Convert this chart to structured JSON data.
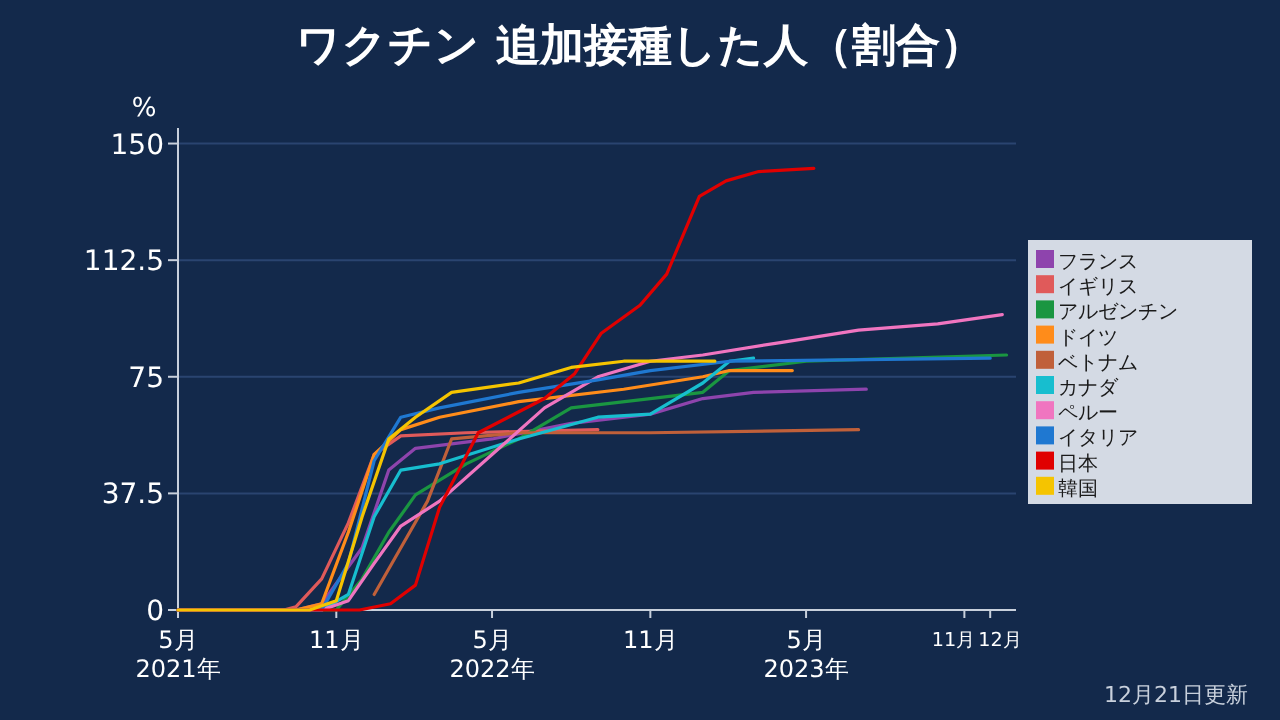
{
  "chart_data": {
    "type": "line",
    "title": "ワクチン 追加接種した人（割合）",
    "ylabel": "%",
    "annotations": [
      "12月21日更新"
    ],
    "xlim": [
      "2021-05-01",
      "2023-12-31"
    ],
    "ylim": [
      0,
      155
    ],
    "xticks": [
      {
        "value": "2021-05",
        "label": "5月\n2021年"
      },
      {
        "value": "2021-11",
        "label": "11月"
      },
      {
        "value": "2022-05",
        "label": "5月\n2022年"
      },
      {
        "value": "2022-11",
        "label": "11月"
      },
      {
        "value": "2023-05",
        "label": "5月\n2023年"
      },
      {
        "value": "2023-11",
        "label": "11月"
      },
      {
        "value": "2023-12",
        "label": "12月"
      }
    ],
    "yticks": [
      0,
      37.5,
      75,
      112.5,
      150
    ],
    "grid": "y",
    "legend": "right",
    "marker": "none",
    "line_style": "solid",
    "series": [
      {
        "name": "フランス",
        "color": "#8e44ad",
        "x": [
          "2021-05-01",
          "2021-09-15",
          "2021-10-15",
          "2021-12-01",
          "2022-01-01",
          "2022-02-01",
          "2022-05-01",
          "2022-08-01",
          "2022-11-01",
          "2023-01-01",
          "2023-03-01",
          "2023-07-10"
        ],
        "values": [
          0,
          0,
          2,
          20,
          45,
          52,
          55,
          60,
          63,
          68,
          70,
          71
        ]
      },
      {
        "name": "イギリス",
        "color": "#e05a5a",
        "x": [
          "2021-05-01",
          "2021-09-01",
          "2021-09-15",
          "2021-10-15",
          "2021-11-15",
          "2021-12-15",
          "2022-01-15",
          "2022-04-01",
          "2022-09-01"
        ],
        "values": [
          0,
          0,
          1,
          10,
          28,
          50,
          56,
          57,
          58
        ]
      },
      {
        "name": "アルゼンチン",
        "color": "#1a9641",
        "x": [
          "2021-05-01",
          "2021-11-01",
          "2021-12-01",
          "2022-01-01",
          "2022-02-01",
          "2022-04-01",
          "2022-06-01",
          "2022-08-01",
          "2022-11-01",
          "2023-01-01",
          "2023-02-01",
          "2023-05-01",
          "2023-12-20"
        ],
        "values": [
          0,
          0,
          10,
          25,
          37,
          47,
          55,
          65,
          68,
          70,
          77,
          80,
          82
        ]
      },
      {
        "name": "ドイツ",
        "color": "#ff8c1a",
        "x": [
          "2021-05-01",
          "2021-09-15",
          "2021-10-15",
          "2021-11-15",
          "2021-12-15",
          "2022-01-15",
          "2022-03-01",
          "2022-06-01",
          "2022-10-01",
          "2023-01-01",
          "2023-02-01",
          "2023-04-15"
        ],
        "values": [
          0,
          0,
          2,
          25,
          50,
          58,
          62,
          67,
          71,
          75,
          77,
          77
        ]
      },
      {
        "name": "ベトナム",
        "color": "#c0603a",
        "x": [
          "2021-12-15",
          "2022-01-15",
          "2022-02-15",
          "2022-03-15",
          "2022-06-01",
          "2022-11-01",
          "2023-07-01"
        ],
        "values": [
          5,
          20,
          35,
          55,
          57,
          57,
          58
        ]
      },
      {
        "name": "カナダ",
        "color": "#17becf",
        "x": [
          "2021-05-01",
          "2021-10-15",
          "2021-11-15",
          "2021-12-15",
          "2022-01-15",
          "2022-03-01",
          "2022-06-01",
          "2022-09-01",
          "2022-11-01",
          "2023-01-01",
          "2023-02-01",
          "2023-03-01"
        ],
        "values": [
          0,
          0,
          5,
          30,
          45,
          47,
          55,
          62,
          63,
          73,
          80,
          81
        ]
      },
      {
        "name": "ペルー",
        "color": "#f075c0",
        "x": [
          "2021-05-01",
          "2021-10-15",
          "2021-11-15",
          "2021-12-15",
          "2022-01-15",
          "2022-03-01",
          "2022-05-01",
          "2022-07-01",
          "2022-09-01",
          "2022-11-01",
          "2023-01-01",
          "2023-04-01",
          "2023-07-01",
          "2023-10-01",
          "2023-12-15"
        ],
        "values": [
          0,
          0,
          3,
          15,
          27,
          35,
          50,
          65,
          75,
          80,
          82,
          86,
          90,
          92,
          95
        ]
      },
      {
        "name": "イタリア",
        "color": "#1f78d1",
        "x": [
          "2021-05-01",
          "2021-10-15",
          "2021-11-15",
          "2021-12-15",
          "2022-01-15",
          "2022-03-01",
          "2022-06-01",
          "2022-09-01",
          "2022-11-01",
          "2023-02-01",
          "2023-12-01"
        ],
        "values": [
          0,
          0,
          15,
          48,
          62,
          65,
          70,
          74,
          77,
          80,
          81
        ]
      },
      {
        "name": "日本",
        "color": "#e00000",
        "x": [
          "2021-05-01",
          "2021-11-28",
          "2022-01-03",
          "2022-02-01",
          "2022-03-01",
          "2022-04-15",
          "2022-07-01",
          "2022-08-05",
          "2022-09-05",
          "2022-10-20",
          "2022-11-20",
          "2022-12-28",
          "2023-01-28",
          "2023-03-07",
          "2023-05-10"
        ],
        "values": [
          0,
          0,
          2,
          8,
          33,
          57,
          68,
          76,
          89,
          98,
          108,
          133,
          138,
          141,
          142
        ]
      },
      {
        "name": "韓国",
        "color": "#f5c400",
        "x": [
          "2021-05-01",
          "2021-10-01",
          "2021-11-01",
          "2021-12-01",
          "2022-01-01",
          "2022-02-01",
          "2022-03-15",
          "2022-06-01",
          "2022-08-01",
          "2022-10-01",
          "2023-01-15"
        ],
        "values": [
          0,
          0,
          3,
          30,
          55,
          62,
          70,
          73,
          78,
          80,
          80
        ]
      }
    ]
  }
}
